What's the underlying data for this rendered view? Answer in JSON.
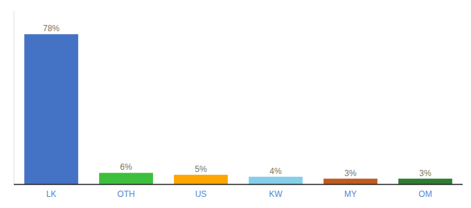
{
  "chart_data": {
    "type": "bar",
    "categories": [
      "LK",
      "OTH",
      "US",
      "KW",
      "MY",
      "OM"
    ],
    "values": [
      78,
      6,
      5,
      4,
      3,
      3
    ],
    "value_labels": [
      "78%",
      "6%",
      "5%",
      "4%",
      "3%",
      "3%"
    ],
    "colors": [
      "#4472C4",
      "#3DBF3D",
      "#FFA500",
      "#87CEEB",
      "#C05A1F",
      "#2E7D32"
    ],
    "ylim": [
      0,
      90
    ],
    "data_labels": true,
    "tick_labels": "x"
  }
}
